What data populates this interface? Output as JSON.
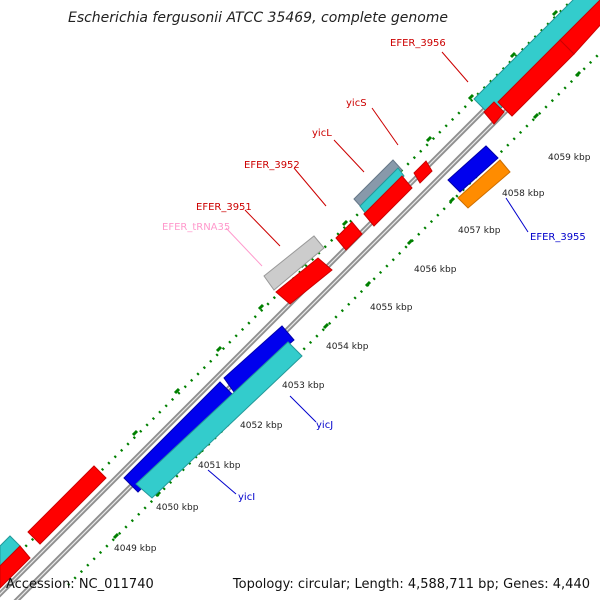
{
  "title": "Escherichia fergusonii ATCC 35469, complete genome",
  "accession": "Accession: NC_011740",
  "summary": "Topology: circular; Length: 4,588,711 bp; Genes: 4,440",
  "scale_labels": [
    "4049 kbp",
    "4050 kbp",
    "4051 kbp",
    "4052 kbp",
    "4053 kbp",
    "4054 kbp",
    "4055 kbp",
    "4056 kbp",
    "4057 kbp",
    "4058 kbp",
    "4059 kbp"
  ],
  "colors": {
    "forward_label": "#cc0000",
    "reverse_label": "#0000cc",
    "trna_label": "#ff99cc",
    "cds_red": "#ff0000",
    "cds_teal": "#33cccc",
    "cds_blue": "#0000ee",
    "cds_orange": "#ff8c00",
    "trna_gray": "#cccccc",
    "backbone": "#808080",
    "tick_green": "#008000"
  },
  "gene_labels": [
    {
      "id": "efer_3956",
      "text": "EFER_3956",
      "strand": "forward"
    },
    {
      "id": "yics",
      "text": "yicS",
      "strand": "forward"
    },
    {
      "id": "yicl",
      "text": "yicL",
      "strand": "forward"
    },
    {
      "id": "efer_3952",
      "text": "EFER_3952",
      "strand": "forward"
    },
    {
      "id": "efer_3951",
      "text": "EFER_3951",
      "strand": "forward"
    },
    {
      "id": "efer_trna35",
      "text": "EFER_tRNA35",
      "strand": "forward"
    },
    {
      "id": "efer_3955",
      "text": "EFER_3955",
      "strand": "reverse"
    },
    {
      "id": "yicj",
      "text": "yicJ",
      "strand": "reverse"
    },
    {
      "id": "yici",
      "text": "yicI",
      "strand": "reverse"
    }
  ]
}
